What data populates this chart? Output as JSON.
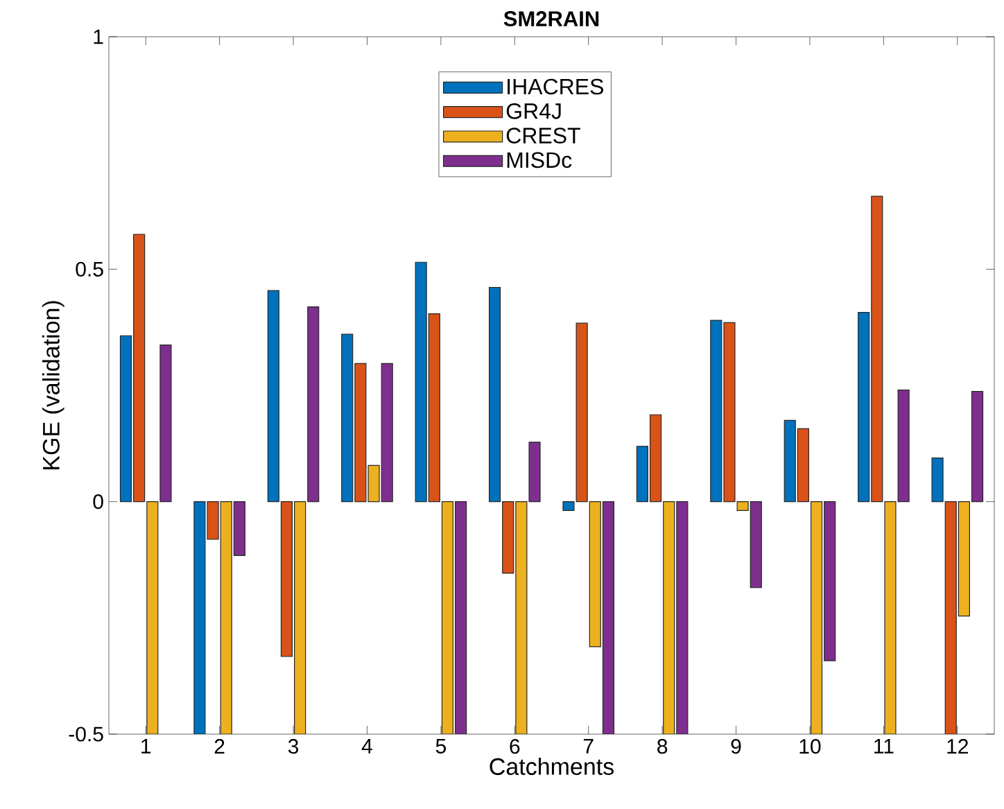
{
  "chart_data": {
    "type": "bar",
    "title": "**SM2RAIN**",
    "xlabel": "Catchments",
    "ylabel": "KGE (validation)",
    "categories": [
      "1",
      "2",
      "3",
      "4",
      "5",
      "6",
      "7",
      "8",
      "9",
      "10",
      "11",
      "12"
    ],
    "series": [
      {
        "name": "IHACRES",
        "color": "#0072bd",
        "values": [
          0.357,
          -0.5,
          0.454,
          0.36,
          0.515,
          0.461,
          -0.019,
          0.119,
          0.39,
          0.175,
          0.407,
          0.094
        ]
      },
      {
        "name": "GR4J",
        "color": "#d95319",
        "values": [
          0.575,
          -0.081,
          -0.333,
          0.297,
          0.404,
          -0.154,
          0.384,
          0.187,
          0.385,
          0.157,
          0.657,
          -0.5
        ]
      },
      {
        "name": "CREST",
        "color": "#edb120",
        "values": [
          -0.5,
          -0.5,
          -0.5,
          0.078,
          -0.5,
          -0.5,
          -0.312,
          -0.5,
          -0.019,
          -0.5,
          -0.5,
          -0.246
        ]
      },
      {
        "name": "MISDc",
        "color": "#7e2f8e",
        "values": [
          0.337,
          -0.116,
          0.419,
          0.297,
          -0.5,
          0.128,
          -0.5,
          -0.5,
          -0.185,
          -0.342,
          0.24,
          0.237
        ]
      }
    ],
    "ylim": [
      -0.5,
      1
    ],
    "yticks": [
      -0.5,
      0,
      0.5,
      1
    ],
    "legend": "top"
  }
}
